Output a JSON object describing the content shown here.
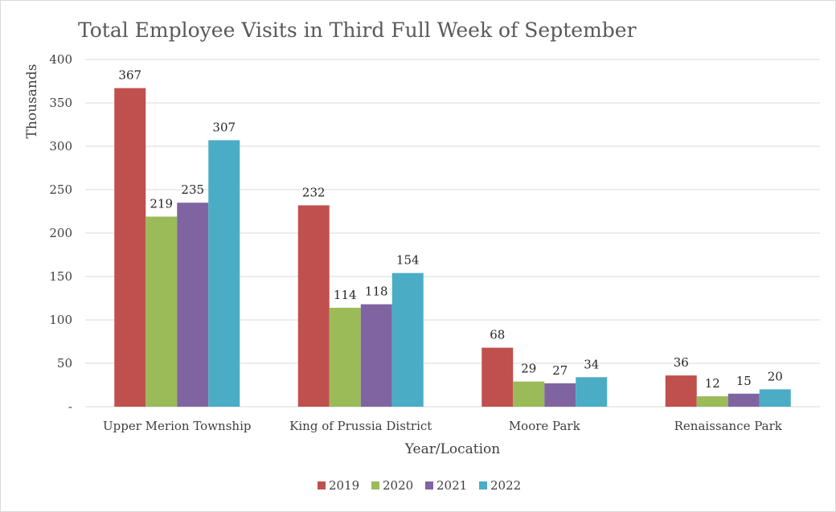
{
  "chart_data": {
    "type": "bar",
    "title": "Total Employee Visits in Third Full Week of September",
    "xlabel": "Year/Location",
    "ylabel": "Thousands",
    "categories": [
      "Upper Merion Township",
      "King of Prussia District",
      "Moore Park",
      "Renaissance Park"
    ],
    "series": [
      {
        "name": "2019",
        "color": "#c0504d",
        "values": [
          367,
          232,
          68,
          36
        ]
      },
      {
        "name": "2020",
        "color": "#9bbb59",
        "values": [
          219,
          114,
          29,
          12
        ]
      },
      {
        "name": "2021",
        "color": "#8064a2",
        "values": [
          235,
          118,
          27,
          15
        ]
      },
      {
        "name": "2022",
        "color": "#4bacc6",
        "values": [
          307,
          154,
          34,
          20
        ]
      }
    ],
    "ylim": [
      0,
      400
    ],
    "yticks": [
      0,
      50,
      100,
      150,
      200,
      250,
      300,
      350,
      400
    ],
    "ytick_labels": [
      "-",
      "50",
      "100",
      "150",
      "200",
      "250",
      "300",
      "350",
      "400"
    ],
    "grid": true,
    "legend_position": "bottom"
  }
}
